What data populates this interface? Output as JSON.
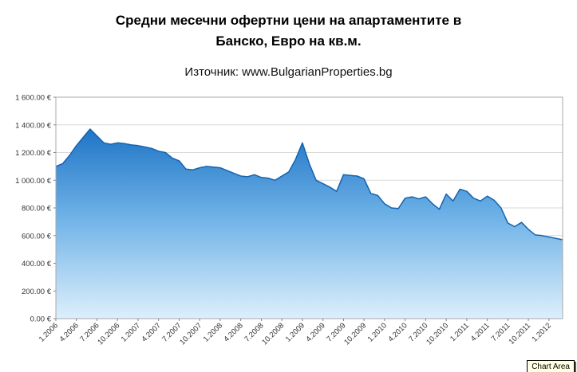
{
  "title": {
    "line1": "Средни месечни офертни цени на апартаментите в",
    "line2": "Банско, Евро на кв.м.",
    "subtitle": "Източник: www.BulgarianProperties.bg"
  },
  "tooltip": {
    "label": "Chart Area"
  },
  "chart_data": {
    "type": "area",
    "title": "Средни месечни офертни цени на апартаментите в Банско, Евро на кв.м.",
    "subtitle": "Източник: www.BulgarianProperties.bg",
    "ylim": [
      0,
      1600
    ],
    "grid": true,
    "label_every": 3,
    "x_labels": [
      "1.2006",
      "4.2006",
      "7.2006",
      "10.2006",
      "1.2007",
      "4.2007",
      "7.2007",
      "10.2007",
      "1.2008",
      "4.2008",
      "7.2008",
      "10.2008",
      "1.2009",
      "4.2009",
      "7.2009",
      "10.2009",
      "1.2010",
      "4.2010",
      "7.2010",
      "10.2010",
      "1.2011",
      "4.2011",
      "7.2011",
      "10.2011",
      "1.2012"
    ],
    "values": [
      1100,
      1120,
      1180,
      1250,
      1310,
      1370,
      1320,
      1270,
      1260,
      1270,
      1265,
      1255,
      1250,
      1240,
      1230,
      1210,
      1200,
      1160,
      1140,
      1080,
      1075,
      1090,
      1100,
      1095,
      1090,
      1070,
      1050,
      1030,
      1025,
      1040,
      1020,
      1015,
      1000,
      1030,
      1060,
      1150,
      1270,
      1120,
      1000,
      975,
      950,
      920,
      1040,
      1035,
      1030,
      1010,
      905,
      890,
      830,
      800,
      795,
      870,
      880,
      865,
      880,
      830,
      790,
      900,
      850,
      935,
      920,
      870,
      850,
      885,
      855,
      800,
      690,
      665,
      695,
      645,
      605,
      600,
      590,
      580,
      570
    ],
    "yticks": [
      {
        "v": 0,
        "label": "0.00 €"
      },
      {
        "v": 200,
        "label": "200.00 €"
      },
      {
        "v": 400,
        "label": "400.00 €"
      },
      {
        "v": 600,
        "label": "600.00 €"
      },
      {
        "v": 800,
        "label": "800.00 €"
      },
      {
        "v": 1000,
        "label": "1 000.00 €"
      },
      {
        "v": 1200,
        "label": "1 200.00 €"
      },
      {
        "v": 1400,
        "label": "1 400.00 €"
      },
      {
        "v": 1600,
        "label": "1 600.00 €"
      }
    ],
    "colors": {
      "line": "#1464ae",
      "fill_top": "#1f74c6",
      "fill_mid": "#6cb0e6",
      "fill_bottom": "#ddeffc",
      "grid": "#d8d8d8",
      "axis": "#a8a8a8",
      "tick": "#808080",
      "tick_text": "#333333"
    }
  }
}
